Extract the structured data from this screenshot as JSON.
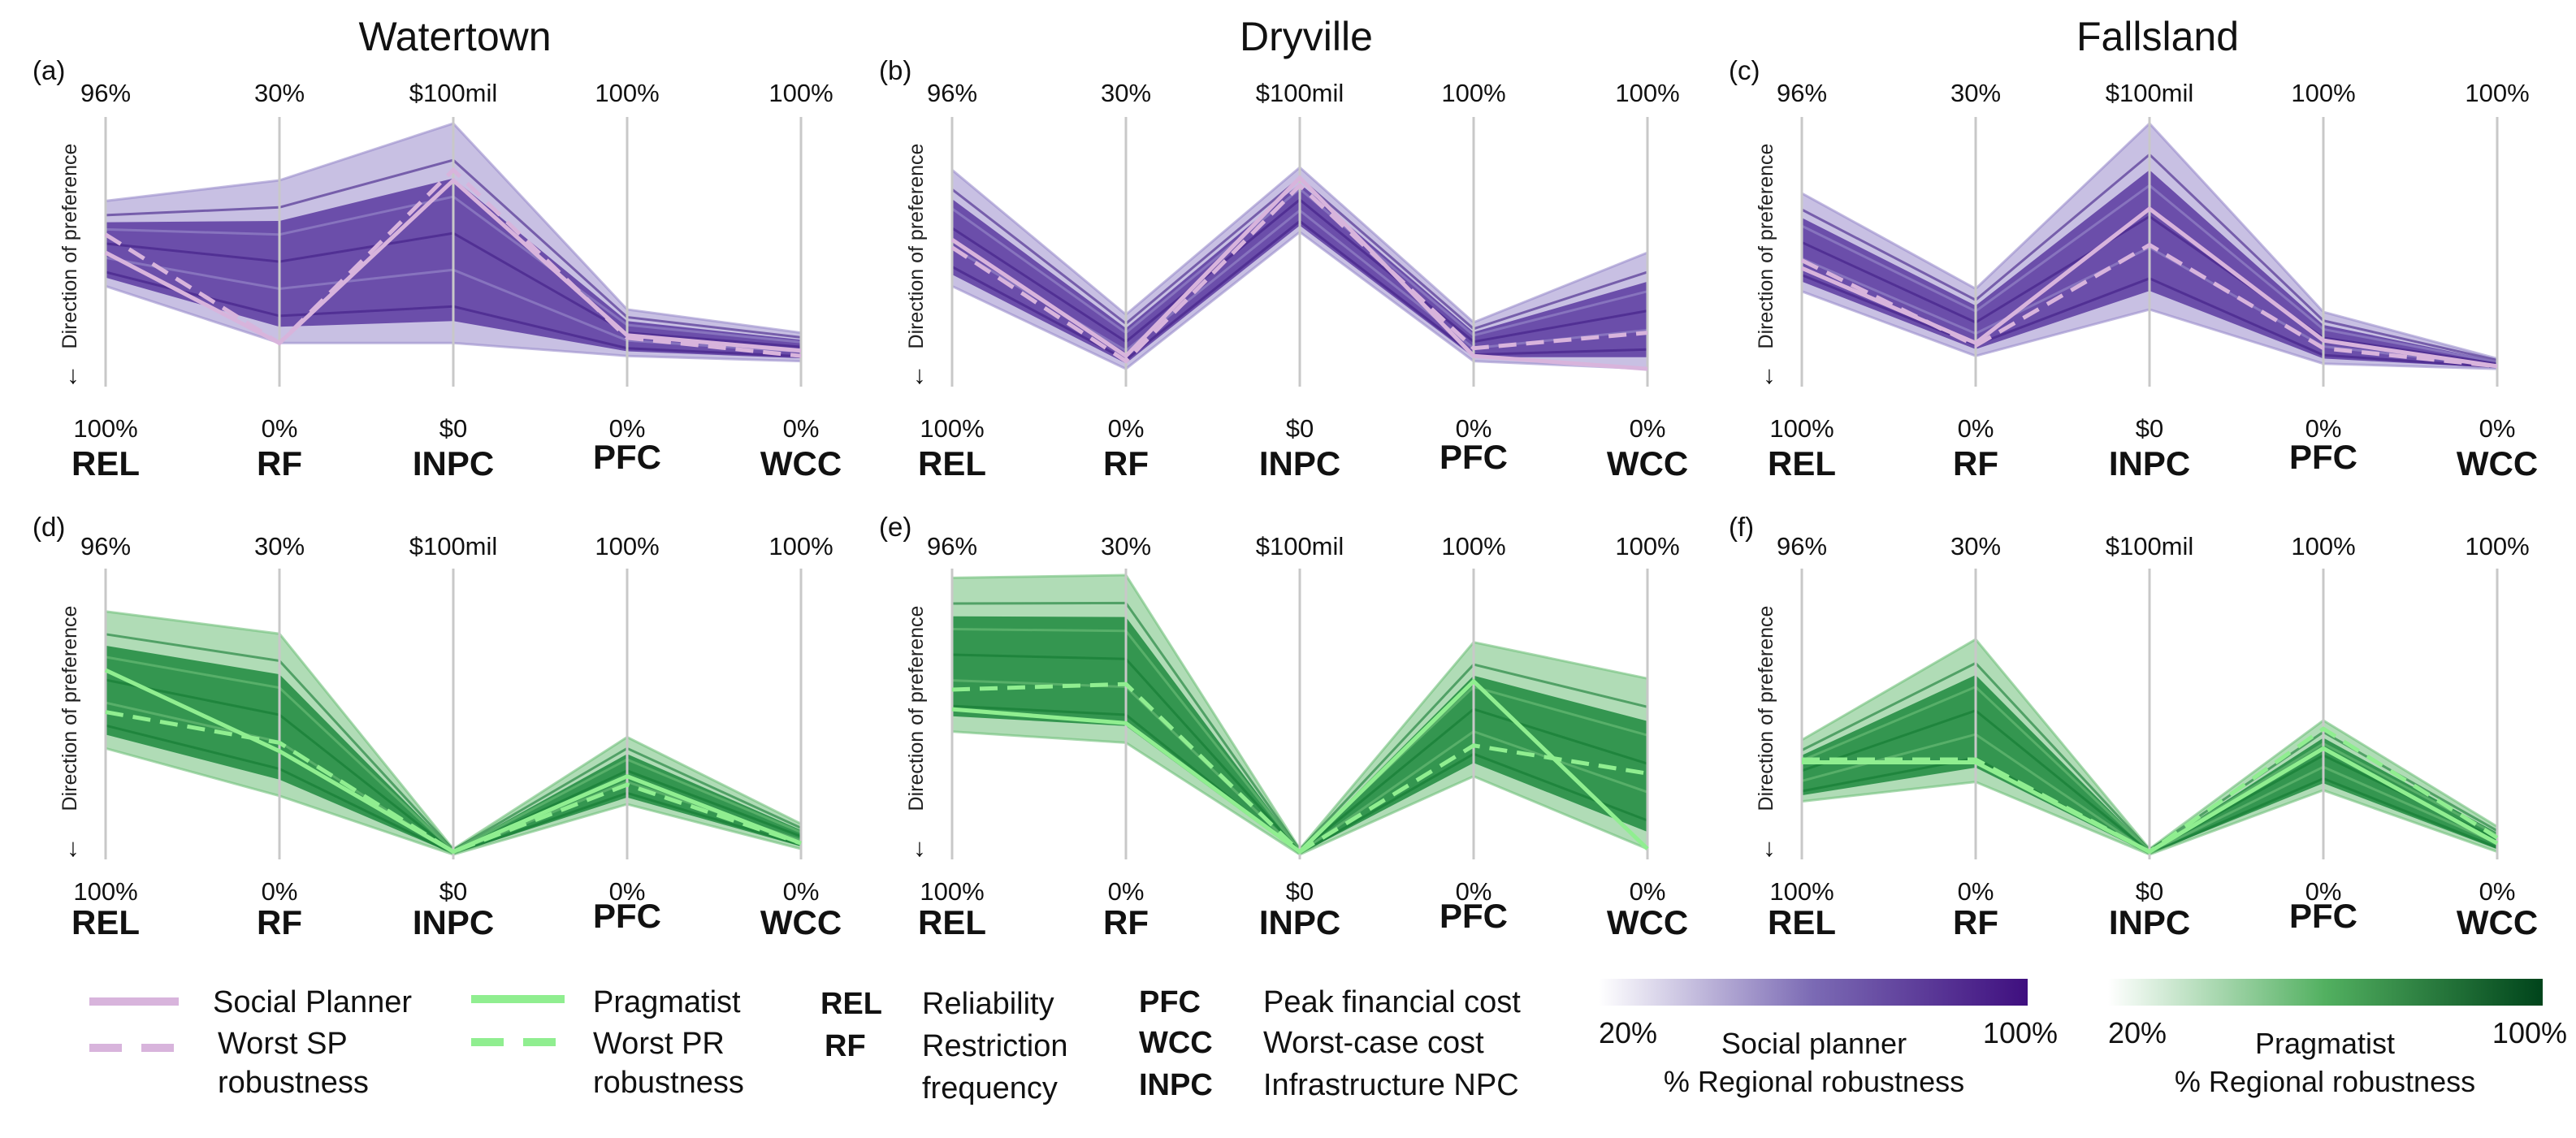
{
  "colors": {
    "purple_dark": "#3f0f7f",
    "purple_light": "#e8e3f3",
    "green_dark": "#00441b",
    "green_light": "#e5f5e0",
    "social_planner_line": "#d8b4dc",
    "pragmatist_line": "#90ee90",
    "axis": "#c8c8c8"
  },
  "column_titles": [
    "Watertown",
    "Dryville",
    "Fallsland"
  ],
  "ylabel": "Direction of preference",
  "arrow_glyph": "↓",
  "legend": {
    "social_planner": "Social Planner",
    "worst_sp_line1": "Worst SP",
    "worst_sp_line2": "robustness",
    "pragmatist": "Pragmatist",
    "worst_pr_line1": "Worst PR",
    "worst_pr_line2": "robustness",
    "abbr": [
      {
        "key": "REL",
        "desc": "Reliability"
      },
      {
        "key": "RF",
        "desc": "Restriction",
        "desc2": "frequency"
      },
      {
        "key": "PFC",
        "desc": "Peak financial cost"
      },
      {
        "key": "WCC",
        "desc": "Worst-case cost"
      },
      {
        "key": "INPC",
        "desc": "Infrastructure NPC"
      }
    ],
    "cbar_purple": {
      "min": "20%",
      "max": "100%",
      "label1": "Social planner",
      "label2": "% Regional robustness"
    },
    "cbar_green": {
      "min": "20%",
      "max": "100%",
      "label1": "Pragmatist",
      "label2": "% Regional robustness"
    }
  },
  "chart_data": [
    {
      "type": "parallel-coordinates",
      "panel": "(a)",
      "title": "Watertown",
      "palette": "purple",
      "axes": [
        {
          "name": "REL",
          "top": "96%",
          "bottom": "100%"
        },
        {
          "name": "RF",
          "top": "30%",
          "bottom": "0%"
        },
        {
          "name": "INPC",
          "top": "$100mil",
          "bottom": "$0"
        },
        {
          "name": "PFC",
          "top": "100%",
          "bottom": "0%"
        },
        {
          "name": "WCC",
          "top": "100%",
          "bottom": "0%"
        }
      ],
      "band_upper": [
        0.7,
        0.78,
        1.0,
        0.28,
        0.19
      ],
      "band_lower": [
        0.37,
        0.15,
        0.15,
        0.1,
        0.08
      ],
      "social_planner": [
        0.5,
        0.15,
        0.78,
        0.18,
        0.12
      ],
      "worst_sp": [
        0.57,
        0.15,
        0.82,
        0.17,
        0.1
      ]
    },
    {
      "type": "parallel-coordinates",
      "panel": "(b)",
      "title": "Dryville",
      "palette": "purple",
      "axes": [
        {
          "name": "REL",
          "top": "96%",
          "bottom": "100%"
        },
        {
          "name": "RF",
          "top": "30%",
          "bottom": "0%"
        },
        {
          "name": "INPC",
          "top": "$100mil",
          "bottom": "$0"
        },
        {
          "name": "PFC",
          "top": "100%",
          "bottom": "0%"
        },
        {
          "name": "WCC",
          "top": "100%",
          "bottom": "0%"
        }
      ],
      "band_upper": [
        0.82,
        0.26,
        0.83,
        0.23,
        0.5
      ],
      "band_lower": [
        0.37,
        0.05,
        0.58,
        0.08,
        0.05
      ],
      "social_planner": [
        0.55,
        0.1,
        0.79,
        0.1,
        0.05
      ],
      "worst_sp": [
        0.52,
        0.08,
        0.76,
        0.13,
        0.19
      ]
    },
    {
      "type": "parallel-coordinates",
      "panel": "(c)",
      "title": "Fallsland",
      "palette": "purple",
      "axes": [
        {
          "name": "REL",
          "top": "96%",
          "bottom": "100%"
        },
        {
          "name": "RF",
          "top": "30%",
          "bottom": "0%"
        },
        {
          "name": "INPC",
          "top": "$100mil",
          "bottom": "$0"
        },
        {
          "name": "PFC",
          "top": "100%",
          "bottom": "0%"
        },
        {
          "name": "WCC",
          "top": "100%",
          "bottom": "0%"
        }
      ],
      "band_upper": [
        0.73,
        0.36,
        1.0,
        0.27,
        0.09
      ],
      "band_lower": [
        0.35,
        0.1,
        0.28,
        0.07,
        0.05
      ],
      "social_planner": [
        0.44,
        0.15,
        0.67,
        0.16,
        0.06
      ],
      "worst_sp": [
        0.47,
        0.14,
        0.53,
        0.13,
        0.06
      ]
    },
    {
      "type": "parallel-coordinates",
      "panel": "(d)",
      "title": "Watertown",
      "palette": "green",
      "axes": [
        {
          "name": "REL",
          "top": "96%",
          "bottom": "100%"
        },
        {
          "name": "RF",
          "top": "30%",
          "bottom": "0%"
        },
        {
          "name": "INPC",
          "top": "$100mil",
          "bottom": "$0"
        },
        {
          "name": "PFC",
          "top": "100%",
          "bottom": "0%"
        },
        {
          "name": "WCC",
          "top": "100%",
          "bottom": "0%"
        }
      ],
      "band_upper": [
        0.87,
        0.79,
        0.02,
        0.42,
        0.11
      ],
      "band_lower": [
        0.38,
        0.21,
        0.0,
        0.18,
        0.02
      ],
      "social_planner": [
        0.66,
        0.37,
        0.01,
        0.28,
        0.04
      ],
      "worst_sp": [
        0.51,
        0.4,
        0.01,
        0.25,
        0.04
      ]
    },
    {
      "type": "parallel-coordinates",
      "panel": "(e)",
      "title": "Dryville",
      "palette": "green",
      "axes": [
        {
          "name": "REL",
          "top": "96%",
          "bottom": "100%"
        },
        {
          "name": "RF",
          "top": "30%",
          "bottom": "0%"
        },
        {
          "name": "INPC",
          "top": "$100mil",
          "bottom": "$0"
        },
        {
          "name": "PFC",
          "top": "100%",
          "bottom": "0%"
        },
        {
          "name": "WCC",
          "top": "100%",
          "bottom": "0%"
        }
      ],
      "band_upper": [
        0.99,
        1.0,
        0.02,
        0.76,
        0.63
      ],
      "band_lower": [
        0.44,
        0.4,
        0.0,
        0.28,
        0.02
      ],
      "social_planner": [
        0.52,
        0.47,
        0.01,
        0.62,
        0.02
      ],
      "worst_sp": [
        0.59,
        0.61,
        0.01,
        0.39,
        0.29
      ]
    },
    {
      "type": "parallel-coordinates",
      "panel": "(f)",
      "title": "Fallsland",
      "palette": "green",
      "axes": [
        {
          "name": "REL",
          "top": "96%",
          "bottom": "100%"
        },
        {
          "name": "RF",
          "top": "30%",
          "bottom": "0%"
        },
        {
          "name": "INPC",
          "top": "$100mil",
          "bottom": "$0"
        },
        {
          "name": "PFC",
          "top": "100%",
          "bottom": "0%"
        },
        {
          "name": "WCC",
          "top": "100%",
          "bottom": "0%"
        }
      ],
      "band_upper": [
        0.41,
        0.77,
        0.02,
        0.48,
        0.1
      ],
      "band_lower": [
        0.19,
        0.26,
        0.0,
        0.23,
        0.01
      ],
      "social_planner": [
        0.33,
        0.33,
        0.01,
        0.38,
        0.04
      ],
      "worst_sp": [
        0.34,
        0.34,
        0.01,
        0.45,
        0.06
      ]
    }
  ]
}
